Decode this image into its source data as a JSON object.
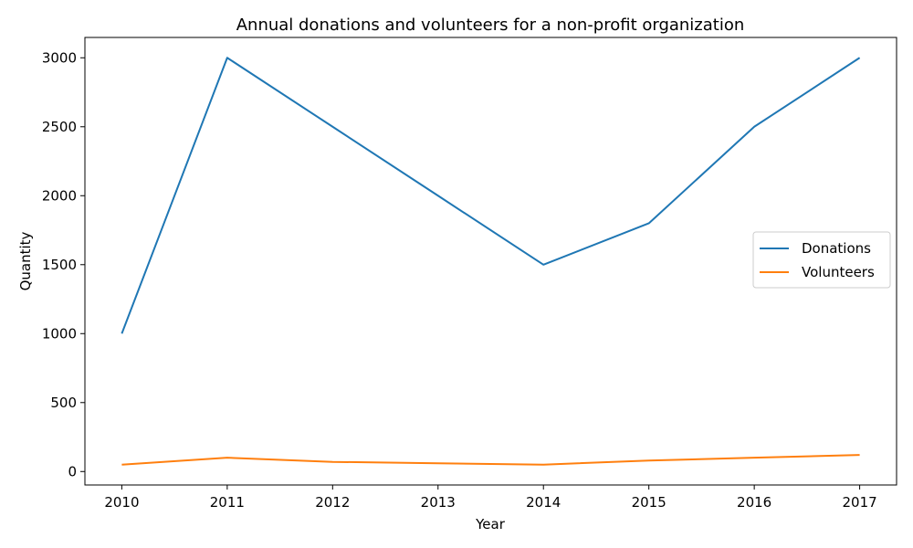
{
  "chart_data": {
    "type": "line",
    "title": "Annual donations and volunteers for a non-profit organization",
    "xlabel": "Year",
    "ylabel": "Quantity",
    "x": [
      2010,
      2011,
      2012,
      2013,
      2014,
      2015,
      2016,
      2017
    ],
    "x_tick_labels": [
      "2010",
      "2011",
      "2012",
      "2013",
      "2014",
      "2015",
      "2016",
      "2017"
    ],
    "y_ticks": [
      0,
      500,
      1000,
      1500,
      2000,
      2500,
      3000
    ],
    "y_tick_labels": [
      "0",
      "500",
      "1000",
      "1500",
      "2000",
      "2500",
      "3000"
    ],
    "xlim": [
      2009.65,
      2017.35
    ],
    "ylim": [
      -97.5,
      3147.5
    ],
    "grid": false,
    "legend_position": "center-right",
    "series": [
      {
        "name": "Donations",
        "color": "#1f77b4",
        "values": [
          1000,
          3000,
          2500,
          2000,
          1500,
          1800,
          2500,
          3000
        ]
      },
      {
        "name": "Volunteers",
        "color": "#ff7f0e",
        "values": [
          50,
          100,
          70,
          60,
          50,
          80,
          100,
          120
        ]
      }
    ]
  }
}
